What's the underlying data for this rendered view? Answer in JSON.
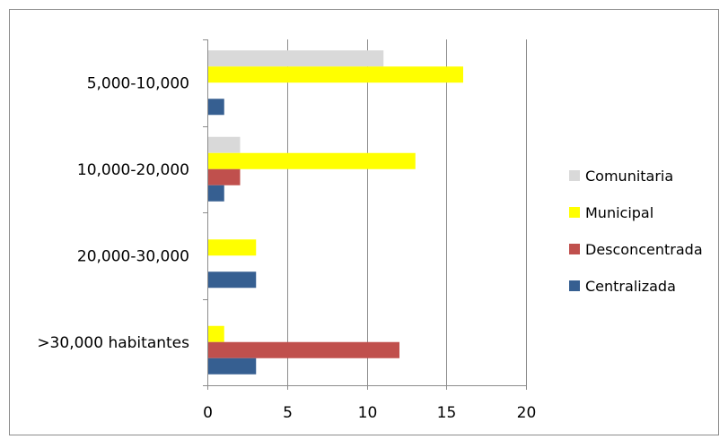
{
  "chart_data": {
    "type": "bar",
    "orientation": "horizontal",
    "categories": [
      "5,000-10,000",
      "10,000-20,000",
      "20,000-30,000",
      ">30,000 habitantes"
    ],
    "series": [
      {
        "name": "Comunitaria",
        "color": "#d9d9d9",
        "values": [
          11,
          2,
          0,
          0
        ]
      },
      {
        "name": "Municipal",
        "color": "#ffff00",
        "values": [
          16,
          13,
          3,
          1
        ]
      },
      {
        "name": "Desconcentrada",
        "color": "#c0504d",
        "values": [
          0,
          2,
          0,
          12
        ]
      },
      {
        "name": "Centralizada",
        "color": "#365f91",
        "values": [
          1,
          1,
          3,
          3
        ]
      }
    ],
    "xlim": [
      0,
      20
    ],
    "xticks": [
      "0",
      "5",
      "10",
      "15",
      "20"
    ],
    "grid": true,
    "legend": "right",
    "legend_order": [
      "Comunitaria",
      "Municipal",
      "Desconcentrada",
      "Centralizada"
    ]
  }
}
